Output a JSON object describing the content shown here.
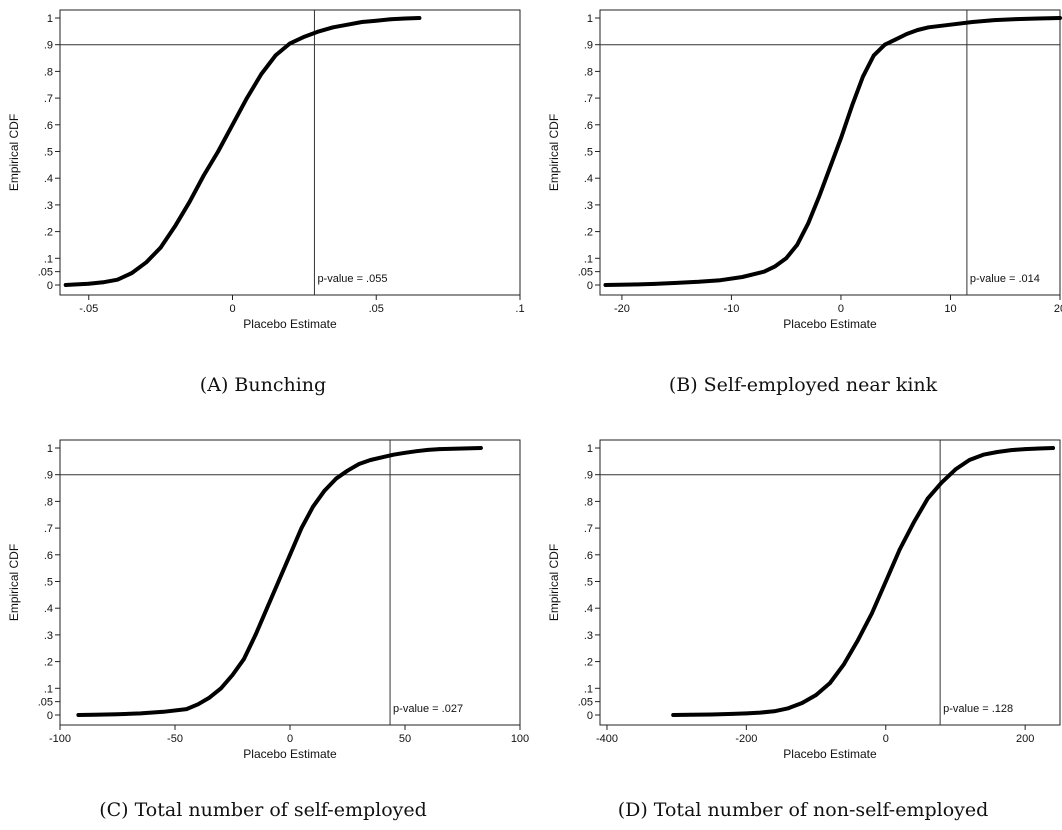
{
  "chart_data": [
    {
      "type": "line",
      "caption": "(A) Bunching",
      "xlabel": "Placebo Estimate",
      "ylabel": "Empirical CDF",
      "xlim": [
        -0.06,
        0.1
      ],
      "ylim": [
        0,
        1
      ],
      "x_ticks": [
        -0.05,
        0,
        0.05,
        0.1
      ],
      "x_tick_labels": [
        "-.05",
        "0",
        ".05",
        ".1"
      ],
      "y_ticks": [
        0,
        0.05,
        0.1,
        0.2,
        0.3,
        0.4,
        0.5,
        0.6,
        0.7,
        0.8,
        0.9,
        1
      ],
      "y_tick_labels": [
        "0",
        ".05",
        ".1",
        ".2",
        ".3",
        ".4",
        ".5",
        ".6",
        ".7",
        ".8",
        ".9",
        "1"
      ],
      "hline_y": 0.9,
      "vline_x": 0.0285,
      "annotation": "p-value = .055",
      "series": [
        {
          "x": [
            -0.058,
            -0.055,
            -0.05,
            -0.045,
            -0.04,
            -0.035,
            -0.03,
            -0.025,
            -0.02,
            -0.015,
            -0.01,
            -0.005,
            0,
            0.005,
            0.01,
            0.015,
            0.02,
            0.025,
            0.03,
            0.035,
            0.04,
            0.045,
            0.05,
            0.055,
            0.06,
            0.065
          ],
          "y": [
            0,
            0.002,
            0.005,
            0.01,
            0.02,
            0.045,
            0.085,
            0.14,
            0.22,
            0.31,
            0.41,
            0.5,
            0.6,
            0.7,
            0.79,
            0.86,
            0.905,
            0.93,
            0.95,
            0.965,
            0.975,
            0.985,
            0.99,
            0.995,
            0.998,
            1
          ]
        }
      ]
    },
    {
      "type": "line",
      "caption": "(B) Self-employed near kink",
      "xlabel": "Placebo Estimate",
      "ylabel": "Empirical CDF",
      "xlim": [
        -22,
        20
      ],
      "ylim": [
        0,
        1
      ],
      "x_ticks": [
        -20,
        -10,
        0,
        10,
        20
      ],
      "x_tick_labels": [
        "-20",
        "-10",
        "0",
        "10",
        "20"
      ],
      "y_ticks": [
        0,
        0.05,
        0.1,
        0.2,
        0.3,
        0.4,
        0.5,
        0.6,
        0.7,
        0.8,
        0.9,
        1
      ],
      "y_tick_labels": [
        "0",
        ".05",
        ".1",
        ".2",
        ".3",
        ".4",
        ".5",
        ".6",
        ".7",
        ".8",
        ".9",
        "1"
      ],
      "hline_y": 0.9,
      "vline_x": 11.5,
      "annotation": "p-value = .014",
      "series": [
        {
          "x": [
            -21.5,
            -19,
            -17,
            -15,
            -13,
            -11,
            -9,
            -7,
            -6,
            -5,
            -4,
            -3,
            -2,
            -1,
            0,
            1,
            2,
            3,
            4,
            5,
            6,
            7,
            8,
            10,
            12,
            14,
            16,
            18,
            19,
            20
          ],
          "y": [
            0,
            0.002,
            0.004,
            0.008,
            0.012,
            0.018,
            0.03,
            0.05,
            0.07,
            0.1,
            0.15,
            0.23,
            0.33,
            0.44,
            0.55,
            0.67,
            0.78,
            0.86,
            0.9,
            0.92,
            0.94,
            0.955,
            0.965,
            0.975,
            0.985,
            0.992,
            0.996,
            0.998,
            0.999,
            1
          ]
        }
      ]
    },
    {
      "type": "line",
      "caption": "(C) Total number of self-employed",
      "xlabel": "Placebo Estimate",
      "ylabel": "Empirical CDF",
      "xlim": [
        -100,
        100
      ],
      "ylim": [
        0,
        1
      ],
      "x_ticks": [
        -100,
        -50,
        0,
        50,
        100
      ],
      "x_tick_labels": [
        "-100",
        "-50",
        "0",
        "50",
        "100"
      ],
      "y_ticks": [
        0,
        0.05,
        0.1,
        0.2,
        0.3,
        0.4,
        0.5,
        0.6,
        0.7,
        0.8,
        0.9,
        1
      ],
      "y_tick_labels": [
        "0",
        ".05",
        ".1",
        ".2",
        ".3",
        ".4",
        ".5",
        ".6",
        ".7",
        ".8",
        ".9",
        "1"
      ],
      "hline_y": 0.9,
      "vline_x": 43.5,
      "annotation": "p-value = .027",
      "series": [
        {
          "x": [
            -92,
            -85,
            -75,
            -65,
            -55,
            -45,
            -40,
            -35,
            -30,
            -25,
            -20,
            -15,
            -10,
            -5,
            0,
            5,
            10,
            15,
            20,
            25,
            30,
            35,
            40,
            45,
            50,
            55,
            60,
            65,
            75,
            83
          ],
          "y": [
            0,
            0.001,
            0.003,
            0.006,
            0.012,
            0.022,
            0.04,
            0.065,
            0.1,
            0.15,
            0.21,
            0.3,
            0.4,
            0.5,
            0.6,
            0.7,
            0.78,
            0.84,
            0.885,
            0.915,
            0.94,
            0.955,
            0.965,
            0.975,
            0.982,
            0.988,
            0.993,
            0.996,
            0.998,
            1
          ]
        }
      ]
    },
    {
      "type": "line",
      "caption": "(D) Total number of non-self-employed",
      "xlabel": "Placebo Estimate",
      "ylabel": "Empirical CDF",
      "xlim": [
        -410,
        250
      ],
      "ylim": [
        0,
        1
      ],
      "x_ticks": [
        -400,
        -200,
        0,
        200
      ],
      "x_tick_labels": [
        "-400",
        "-200",
        "0",
        "200"
      ],
      "y_ticks": [
        0,
        0.05,
        0.1,
        0.2,
        0.3,
        0.4,
        0.5,
        0.6,
        0.7,
        0.8,
        0.9,
        1
      ],
      "y_tick_labels": [
        "0",
        ".05",
        ".1",
        ".2",
        ".3",
        ".4",
        ".5",
        ".6",
        ".7",
        ".8",
        ".9",
        "1"
      ],
      "hline_y": 0.9,
      "vline_x": 78,
      "annotation": "p-value = .128",
      "series": [
        {
          "x": [
            -305,
            -280,
            -250,
            -220,
            -200,
            -180,
            -160,
            -140,
            -120,
            -100,
            -80,
            -60,
            -40,
            -20,
            0,
            20,
            40,
            60,
            80,
            100,
            120,
            140,
            160,
            180,
            200,
            220,
            240
          ],
          "y": [
            0,
            0.001,
            0.002,
            0.004,
            0.006,
            0.009,
            0.014,
            0.025,
            0.045,
            0.075,
            0.12,
            0.19,
            0.28,
            0.38,
            0.5,
            0.62,
            0.72,
            0.81,
            0.87,
            0.92,
            0.955,
            0.975,
            0.985,
            0.992,
            0.996,
            0.998,
            1
          ]
        }
      ]
    }
  ]
}
